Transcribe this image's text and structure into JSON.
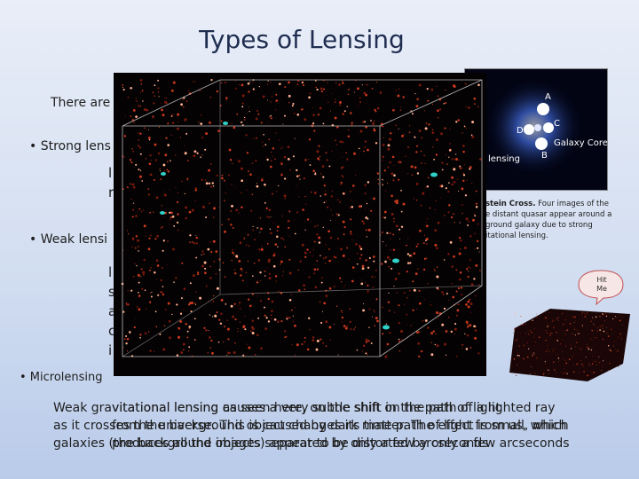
{
  "title": "Types of Lensing",
  "intro": "There are",
  "bullets": [
    {
      "label": "• Strong lens",
      "lines": [
        "l",
        "r"
      ]
    },
    {
      "label": "• Weak lensi",
      "lines": [
        "l",
        "s",
        "a",
        "c",
        "i"
      ]
    },
    {
      "label": "• Microlensing"
    }
  ],
  "paragraph_layers": [
    [
      "Weak gravitational lensing causes a very subtle shift in the path of light",
      "as it crosses the universe. This is caused by dark matter. The effect is small, which",
      "galaxies (the background objects) appear to be distorted by only a few arcseconds"
    ],
    [
      "vitational lensing as seen here, on the shift on the path of a lighted ray",
      "from the background object changes its time path of light from us, which",
      "produces all the images separated by only a few arcseconds"
    ]
  ],
  "figure": {
    "labels": [
      "A",
      "B",
      "C",
      "D",
      "Galaxy Core"
    ],
    "side_label": "lensing",
    "caption_bold": "stein Cross.",
    "caption": [
      "Four images of the",
      "e distant quasar appear around a",
      "ground galaxy due to strong",
      "itational lensing."
    ]
  },
  "button": [
    "Hit",
    "Me"
  ]
}
